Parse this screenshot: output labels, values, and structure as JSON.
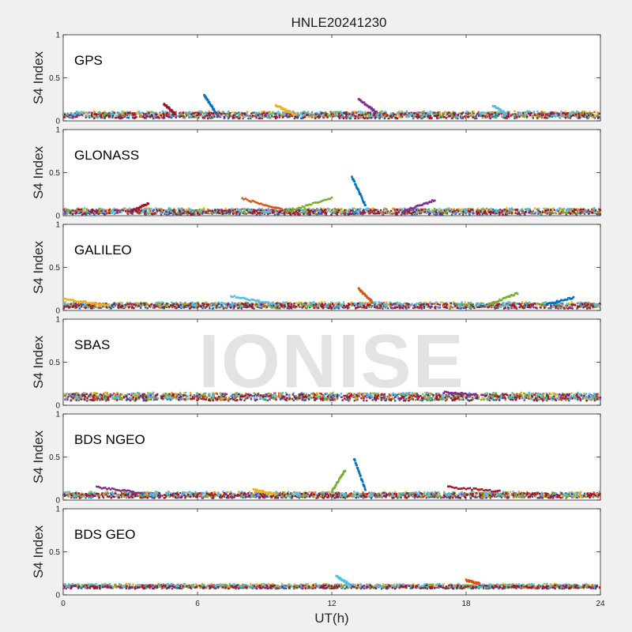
{
  "figure": {
    "title": "HNLE20241230",
    "xlabel": "UT(h)",
    "watermark": "IONISE",
    "background": "#f0f0f0",
    "axes_background": "#ffffff"
  },
  "chart_data": {
    "type": "scatter",
    "title": "HNLE20241230",
    "xlabel": "UT(h)",
    "xlim": [
      0,
      24
    ],
    "xticks": [
      0,
      6,
      12,
      18,
      24
    ],
    "xtick_labels": [
      "0",
      "6",
      "12",
      "18",
      "24"
    ],
    "ylabel": "S4 Index",
    "ylim": [
      0,
      1
    ],
    "yticks": [
      0,
      0.5,
      1
    ],
    "ytick_labels": [
      "0",
      "0.5",
      "1"
    ],
    "grid": false,
    "colors": [
      "#0072BD",
      "#D95319",
      "#EDB120",
      "#7E2F8E",
      "#77AC30",
      "#4DBEEE",
      "#A2142F"
    ],
    "panels": [
      {
        "name": "GPS",
        "baseline": 0.07,
        "noise": 0.035,
        "features": [
          {
            "x": [
              6.3,
              6.8
            ],
            "y": [
              0.3,
              0.1
            ]
          },
          {
            "x": [
              13.2,
              14.0
            ],
            "y": [
              0.25,
              0.1
            ]
          },
          {
            "x": [
              4.5,
              5.0
            ],
            "y": [
              0.2,
              0.08
            ]
          },
          {
            "x": [
              9.5,
              10.3
            ],
            "y": [
              0.18,
              0.08
            ]
          },
          {
            "x": [
              19.2,
              19.8
            ],
            "y": [
              0.18,
              0.08
            ]
          }
        ]
      },
      {
        "name": "GLONASS",
        "baseline": 0.05,
        "noise": 0.03,
        "features": [
          {
            "x": [
              8.0,
              10.0
            ],
            "y": [
              0.2,
              0.05
            ]
          },
          {
            "x": [
              10.0,
              12.0
            ],
            "y": [
              0.05,
              0.2
            ]
          },
          {
            "x": [
              12.9,
              13.5
            ],
            "y": [
              0.45,
              0.12
            ]
          },
          {
            "x": [
              15.2,
              16.6
            ],
            "y": [
              0.05,
              0.18
            ]
          },
          {
            "x": [
              3.0,
              3.8
            ],
            "y": [
              0.05,
              0.14
            ]
          }
        ]
      },
      {
        "name": "GALILEO",
        "baseline": 0.06,
        "noise": 0.03,
        "features": [
          {
            "x": [
              0.0,
              2.0
            ],
            "y": [
              0.14,
              0.05
            ]
          },
          {
            "x": [
              7.5,
              9.5
            ],
            "y": [
              0.17,
              0.07
            ]
          },
          {
            "x": [
              13.2,
              13.8
            ],
            "y": [
              0.25,
              0.1
            ]
          },
          {
            "x": [
              19.0,
              20.3
            ],
            "y": [
              0.07,
              0.2
            ]
          },
          {
            "x": [
              21.6,
              22.8
            ],
            "y": [
              0.07,
              0.15
            ]
          }
        ]
      },
      {
        "name": "SBAS",
        "baseline": 0.1,
        "noise": 0.04,
        "features": [
          {
            "x": [
              17.0,
              18.5
            ],
            "y": [
              0.15,
              0.12
            ]
          }
        ]
      },
      {
        "name": "BDS NGEO",
        "baseline": 0.06,
        "noise": 0.03,
        "features": [
          {
            "x": [
              12.0,
              12.6
            ],
            "y": [
              0.1,
              0.35
            ]
          },
          {
            "x": [
              13.0,
              13.5
            ],
            "y": [
              0.48,
              0.12
            ]
          },
          {
            "x": [
              1.5,
              3.5
            ],
            "y": [
              0.15,
              0.08
            ]
          },
          {
            "x": [
              17.2,
              19.5
            ],
            "y": [
              0.15,
              0.1
            ]
          },
          {
            "x": [
              8.5,
              9.5
            ],
            "y": [
              0.12,
              0.07
            ]
          }
        ]
      },
      {
        "name": "BDS GEO",
        "baseline": 0.1,
        "noise": 0.02,
        "features": [
          {
            "x": [
              12.2,
              12.8
            ],
            "y": [
              0.22,
              0.12
            ]
          },
          {
            "x": [
              18.0,
              18.6
            ],
            "y": [
              0.17,
              0.13
            ]
          }
        ]
      }
    ]
  }
}
